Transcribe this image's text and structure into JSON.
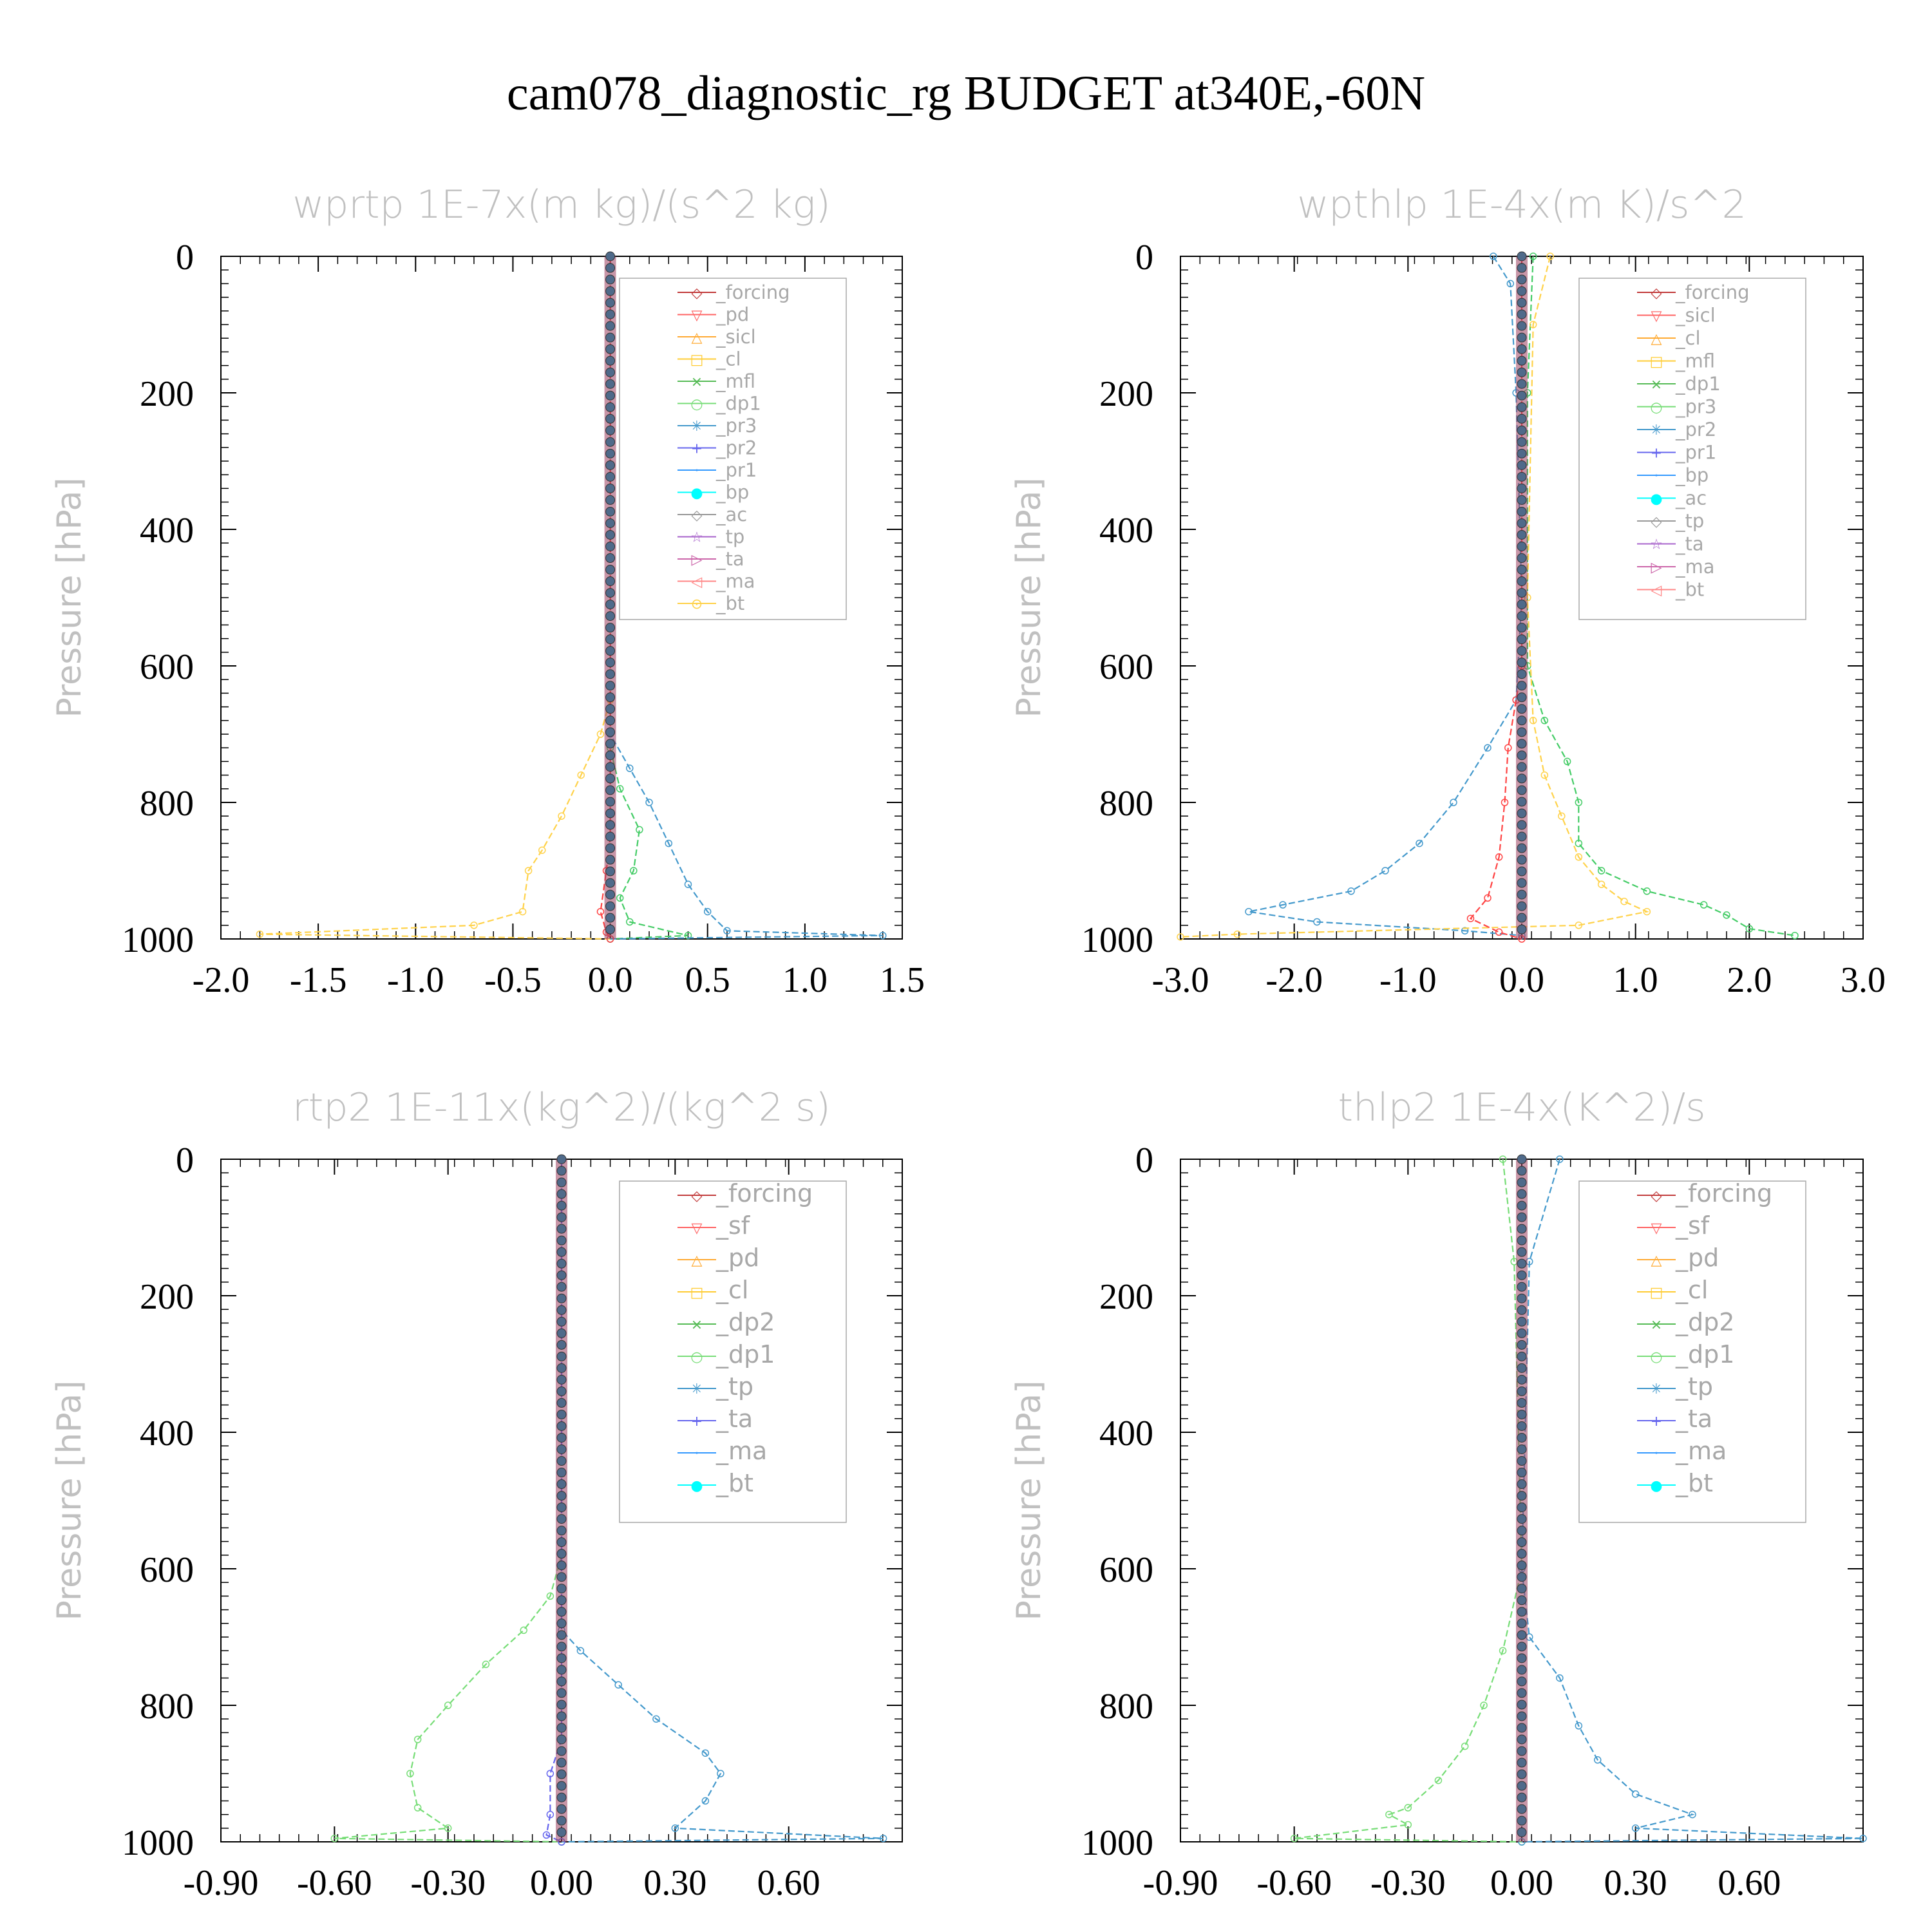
{
  "title": "cam078_diagnostic_rg  BUDGET at340E,-60N",
  "chart_data": [
    {
      "type": "line",
      "title": "wprtp  1E-7x(m kg)/(s^2 kg)",
      "ylabel": "Pressure [hPa]",
      "xlim": [
        -2.0,
        1.5
      ],
      "ylim": [
        0,
        1000
      ],
      "xticks": [
        "-2.0",
        "-1.5",
        "-1.0",
        "-0.5",
        "0.0",
        "0.5",
        "1.0",
        "1.5"
      ],
      "yticks": [
        "0",
        "200",
        "400",
        "600",
        "800",
        "1000"
      ],
      "legend": [
        "_forcing",
        "_pd",
        "_sicl",
        "_cl",
        "_mfl",
        "_dp1",
        "_pr3",
        "_pr2",
        "_pr1",
        "_bp",
        "_ac",
        "_tp",
        "_ta",
        "_ma",
        "_bt"
      ],
      "series": [
        {
          "name": "_pr1",
          "color": "#ffd24a",
          "points": [
            [
              0,
              0
            ],
            [
              0,
              650
            ],
            [
              -0.05,
              700
            ],
            [
              -0.15,
              760
            ],
            [
              -0.25,
              820
            ],
            [
              -0.35,
              870
            ],
            [
              -0.42,
              900
            ],
            [
              -0.45,
              960
            ],
            [
              -0.7,
              980
            ],
            [
              -1.8,
              993
            ],
            [
              0,
              1000
            ]
          ]
        },
        {
          "name": "_bp",
          "color": "#44cc66",
          "points": [
            [
              0,
              0
            ],
            [
              0,
              720
            ],
            [
              0.05,
              780
            ],
            [
              0.15,
              840
            ],
            [
              0.12,
              900
            ],
            [
              0.05,
              940
            ],
            [
              0.1,
              975
            ],
            [
              0.4,
              995
            ],
            [
              0,
              1000
            ]
          ]
        },
        {
          "name": "_tp",
          "color": "#4499cc",
          "points": [
            [
              0,
              0
            ],
            [
              0,
              700
            ],
            [
              0.1,
              750
            ],
            [
              0.2,
              800
            ],
            [
              0.3,
              860
            ],
            [
              0.4,
              920
            ],
            [
              0.5,
              960
            ],
            [
              0.6,
              988
            ],
            [
              1.4,
              995
            ],
            [
              0,
              1000
            ]
          ]
        },
        {
          "name": "_pr3",
          "color": "#ff4444",
          "points": [
            [
              0,
              0
            ],
            [
              0,
              850
            ],
            [
              -0.02,
              900
            ],
            [
              -0.05,
              960
            ],
            [
              -0.02,
              990
            ],
            [
              0,
              1000
            ]
          ]
        }
      ]
    },
    {
      "type": "line",
      "title": "wpthlp  1E-4x(m K)/s^2",
      "ylabel": "Pressure [hPa]",
      "xlim": [
        -3.0,
        3.0
      ],
      "ylim": [
        0,
        1000
      ],
      "xticks": [
        "-3.0",
        "-2.0",
        "-1.0",
        "0.0",
        "1.0",
        "2.0",
        "3.0"
      ],
      "yticks": [
        "0",
        "200",
        "400",
        "600",
        "800",
        "1000"
      ],
      "legend": [
        "_forcing",
        "_sicl",
        "_cl",
        "_mfl",
        "_dp1",
        "_pr3",
        "_pr2",
        "_pr1",
        "_bp",
        "_ac",
        "_tp",
        "_ta",
        "_ma",
        "_bt"
      ],
      "series": [
        {
          "name": "_tp",
          "color": "#4499cc",
          "points": [
            [
              -0.25,
              0
            ],
            [
              -0.1,
              40
            ],
            [
              -0.05,
              200
            ],
            [
              0,
              500
            ],
            [
              -0.05,
              650
            ],
            [
              -0.3,
              720
            ],
            [
              -0.6,
              800
            ],
            [
              -0.9,
              860
            ],
            [
              -1.2,
              900
            ],
            [
              -1.5,
              930
            ],
            [
              -2.1,
              950
            ],
            [
              -2.4,
              960
            ],
            [
              -1.8,
              975
            ],
            [
              -0.5,
              988
            ],
            [
              0,
              995
            ]
          ]
        },
        {
          "name": "_bp",
          "color": "#44cc66",
          "points": [
            [
              0.1,
              0
            ],
            [
              0.05,
              200
            ],
            [
              0.05,
              600
            ],
            [
              0.2,
              680
            ],
            [
              0.4,
              740
            ],
            [
              0.5,
              800
            ],
            [
              0.5,
              860
            ],
            [
              0.7,
              900
            ],
            [
              1.1,
              930
            ],
            [
              1.6,
              950
            ],
            [
              1.8,
              965
            ],
            [
              2.0,
              985
            ],
            [
              2.4,
              995
            ]
          ]
        },
        {
          "name": "_pr1",
          "color": "#ffd24a",
          "points": [
            [
              0.25,
              0
            ],
            [
              0.1,
              100
            ],
            [
              0.05,
              500
            ],
            [
              0.1,
              680
            ],
            [
              0.2,
              760
            ],
            [
              0.35,
              820
            ],
            [
              0.5,
              880
            ],
            [
              0.7,
              920
            ],
            [
              0.9,
              945
            ],
            [
              1.1,
              960
            ],
            [
              0.5,
              980
            ],
            [
              -2.5,
              993
            ],
            [
              -3,
              997
            ]
          ]
        },
        {
          "name": "_pr3",
          "color": "#ff4444",
          "points": [
            [
              0,
              0
            ],
            [
              0,
              600
            ],
            [
              -0.05,
              650
            ],
            [
              -0.12,
              720
            ],
            [
              -0.15,
              800
            ],
            [
              -0.2,
              880
            ],
            [
              -0.3,
              940
            ],
            [
              -0.45,
              970
            ],
            [
              -0.2,
              990
            ],
            [
              0,
              1000
            ]
          ]
        }
      ]
    },
    {
      "type": "line",
      "title": "rtp2  1E-11x(kg^2)/(kg^2 s)",
      "ylabel": "Pressure [hPa]",
      "xlim": [
        -0.9,
        0.9
      ],
      "ylim": [
        0,
        1000
      ],
      "xticks": [
        "-0.90",
        "-0.60",
        "-0.30",
        "0.00",
        "0.30",
        "0.60"
      ],
      "yticks": [
        "0",
        "200",
        "400",
        "600",
        "800",
        "1000"
      ],
      "legend": [
        "_forcing",
        "_sf",
        "_pd",
        "_cl",
        "_dp2",
        "_dp1",
        "_tp",
        "_ta",
        "_ma",
        "_bt"
      ],
      "series": [
        {
          "name": "_dp1",
          "color": "#77dd77",
          "points": [
            [
              0,
              0
            ],
            [
              0,
              580
            ],
            [
              -0.03,
              640
            ],
            [
              -0.1,
              690
            ],
            [
              -0.2,
              740
            ],
            [
              -0.3,
              800
            ],
            [
              -0.38,
              850
            ],
            [
              -0.4,
              900
            ],
            [
              -0.38,
              950
            ],
            [
              -0.3,
              980
            ],
            [
              -0.6,
              995
            ],
            [
              0,
              1000
            ]
          ]
        },
        {
          "name": "_tp",
          "color": "#4499cc",
          "points": [
            [
              0,
              0
            ],
            [
              0,
              690
            ],
            [
              0.05,
              720
            ],
            [
              0.15,
              770
            ],
            [
              0.25,
              820
            ],
            [
              0.38,
              870
            ],
            [
              0.42,
              900
            ],
            [
              0.38,
              940
            ],
            [
              0.3,
              980
            ],
            [
              0.85,
              995
            ],
            [
              0,
              1000
            ]
          ]
        },
        {
          "name": "_ta",
          "color": "#6666ee",
          "points": [
            [
              0,
              0
            ],
            [
              0,
              850
            ],
            [
              -0.03,
              900
            ],
            [
              -0.03,
              960
            ],
            [
              -0.04,
              990
            ],
            [
              0,
              1000
            ]
          ]
        }
      ]
    },
    {
      "type": "line",
      "title": "thlp2  1E-4x(K^2)/s",
      "ylabel": "Pressure [hPa]",
      "xlim": [
        -0.9,
        0.9
      ],
      "ylim": [
        0,
        1000
      ],
      "xticks": [
        "-0.90",
        "-0.60",
        "-0.30",
        "0.00",
        "0.30",
        "0.60"
      ],
      "yticks": [
        "0",
        "200",
        "400",
        "600",
        "800",
        "1000"
      ],
      "legend": [
        "_forcing",
        "_sf",
        "_pd",
        "_cl",
        "_dp2",
        "_dp1",
        "_tp",
        "_ta",
        "_ma",
        "_bt"
      ],
      "series": [
        {
          "name": "_dp1",
          "color": "#77dd77",
          "points": [
            [
              -0.05,
              0
            ],
            [
              -0.02,
              150
            ],
            [
              0,
              600
            ],
            [
              -0.05,
              720
            ],
            [
              -0.1,
              800
            ],
            [
              -0.15,
              860
            ],
            [
              -0.22,
              910
            ],
            [
              -0.3,
              950
            ],
            [
              -0.35,
              960
            ],
            [
              -0.3,
              975
            ],
            [
              -0.6,
              995
            ],
            [
              0,
              1000
            ]
          ]
        },
        {
          "name": "_tp",
          "color": "#4499cc",
          "points": [
            [
              0.1,
              0
            ],
            [
              0.02,
              150
            ],
            [
              0,
              600
            ],
            [
              0.02,
              700
            ],
            [
              0.1,
              760
            ],
            [
              0.15,
              830
            ],
            [
              0.2,
              880
            ],
            [
              0.3,
              930
            ],
            [
              0.45,
              960
            ],
            [
              0.3,
              980
            ],
            [
              0.9,
              995
            ],
            [
              0,
              1000
            ]
          ]
        }
      ]
    }
  ]
}
